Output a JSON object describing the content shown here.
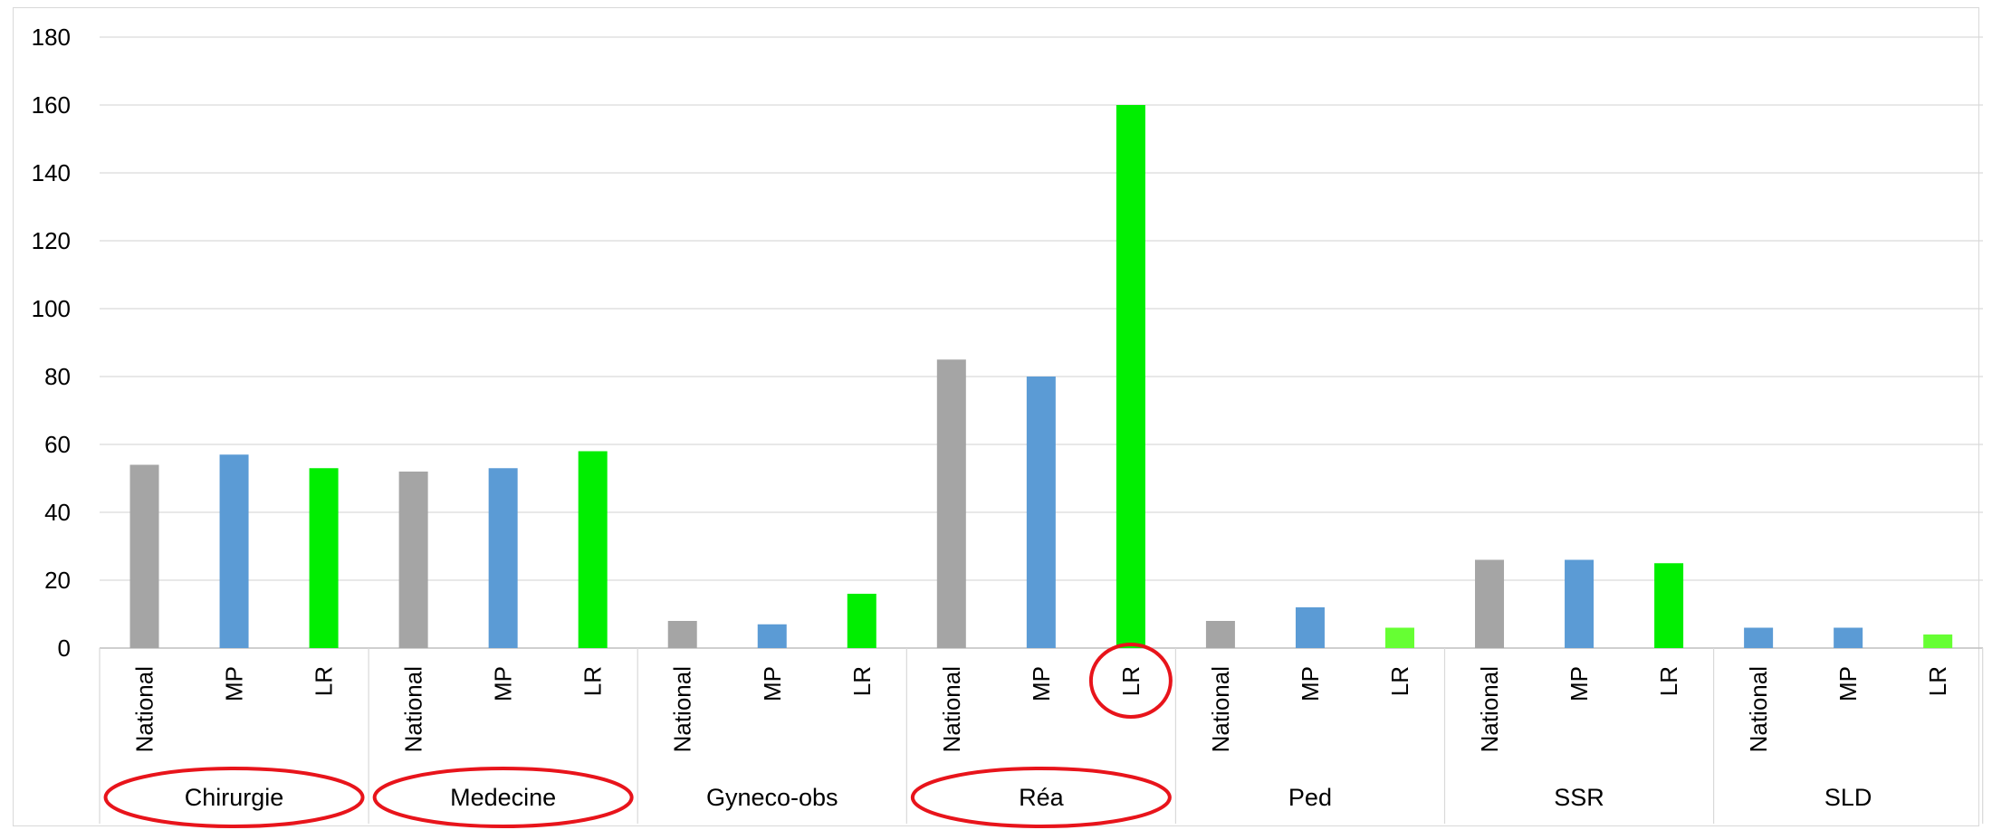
{
  "chart_data": {
    "type": "bar",
    "ylim": [
      0,
      180
    ],
    "yticks": [
      0,
      20,
      40,
      60,
      80,
      100,
      120,
      140,
      160,
      180
    ],
    "grid": true,
    "groups": [
      {
        "name": "Chirurgie",
        "highlighted": true,
        "bars": [
          {
            "label": "National",
            "value": 54,
            "color": "#a5a5a5"
          },
          {
            "label": "MP",
            "value": 57,
            "color": "#5b9bd5"
          },
          {
            "label": "LR",
            "value": 53,
            "color": "#00ee00"
          }
        ]
      },
      {
        "name": "Medecine",
        "highlighted": true,
        "bars": [
          {
            "label": "National",
            "value": 52,
            "color": "#a5a5a5"
          },
          {
            "label": "MP",
            "value": 53,
            "color": "#5b9bd5"
          },
          {
            "label": "LR",
            "value": 58,
            "color": "#00ee00"
          }
        ]
      },
      {
        "name": "Gyneco-obs",
        "highlighted": false,
        "bars": [
          {
            "label": "National",
            "value": 8,
            "color": "#a5a5a5"
          },
          {
            "label": "MP",
            "value": 7,
            "color": "#5b9bd5"
          },
          {
            "label": "LR",
            "value": 16,
            "color": "#00ee00"
          }
        ]
      },
      {
        "name": "Réa",
        "highlighted": true,
        "bars": [
          {
            "label": "National",
            "value": 85,
            "color": "#a5a5a5"
          },
          {
            "label": "MP",
            "value": 80,
            "color": "#5b9bd5"
          },
          {
            "label": "LR",
            "value": 160,
            "color": "#00ee00",
            "highlighted": true
          }
        ]
      },
      {
        "name": "Ped",
        "highlighted": false,
        "bars": [
          {
            "label": "National",
            "value": 8,
            "color": "#a5a5a5"
          },
          {
            "label": "MP",
            "value": 12,
            "color": "#5b9bd5"
          },
          {
            "label": "LR",
            "value": 6,
            "color": "#66ff33"
          }
        ]
      },
      {
        "name": "SSR",
        "highlighted": false,
        "bars": [
          {
            "label": "National",
            "value": 26,
            "color": "#a5a5a5"
          },
          {
            "label": "MP",
            "value": 26,
            "color": "#5b9bd5"
          },
          {
            "label": "LR",
            "value": 25,
            "color": "#00ee00"
          }
        ]
      },
      {
        "name": "SLD",
        "highlighted": false,
        "bars": [
          {
            "label": "National",
            "value": 0,
            "color": "#a5a5a5"
          },
          {
            "label": "MP",
            "value": 6,
            "color": "#5b9bd5"
          },
          {
            "label": "LR",
            "value": 6,
            "color": "#5b9bd5"
          },
          {
            "label": "",
            "value": 4,
            "color": "#66ff33"
          }
        ]
      }
    ],
    "highlight_color": "#e8141b"
  }
}
